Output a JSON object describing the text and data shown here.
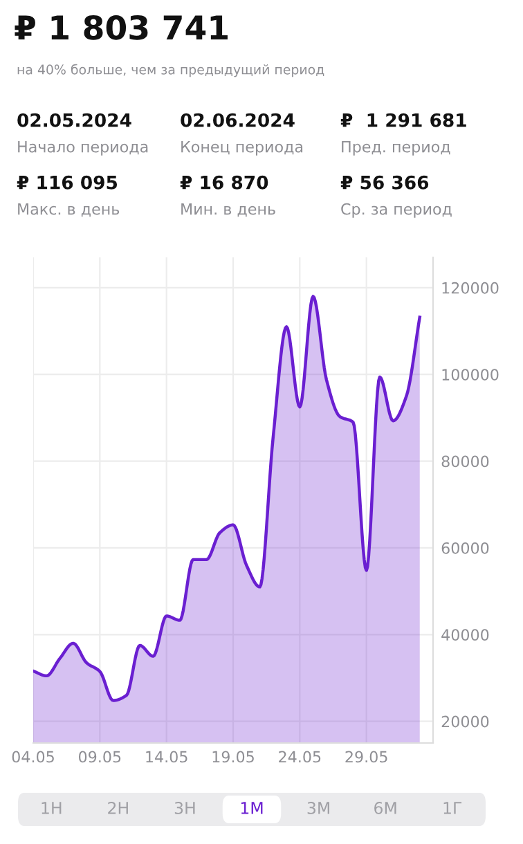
{
  "chart_data": {
    "type": "area",
    "title": "₽ 1 803 741",
    "subtitle": "на 40% больше, чем за предыдущий период",
    "annotations": [
      "02.05.2024",
      "Начало периода",
      "02.06.2024",
      "Конец периода",
      "₽  1 291 681",
      "Пред. период",
      "₽ 116 095",
      "Макс. в день",
      "₽ 16 870",
      "Мин. в день",
      "₽ 56 366",
      "Ср. за период",
      "1Н",
      "2Н",
      "3Н",
      "1М",
      "3М",
      "6М",
      "1Г"
    ],
    "x": [
      "2024-05-04",
      "2024-05-05",
      "2024-05-06",
      "2024-05-07",
      "2024-05-08",
      "2024-05-09",
      "2024-05-10",
      "2024-05-11",
      "2024-05-12",
      "2024-05-13",
      "2024-05-14",
      "2024-05-15",
      "2024-05-16",
      "2024-05-17",
      "2024-05-18",
      "2024-05-19",
      "2024-05-20",
      "2024-05-21",
      "2024-05-22",
      "2024-05-23",
      "2024-05-24",
      "2024-05-25",
      "2024-05-26",
      "2024-05-27",
      "2024-05-28",
      "2024-05-29",
      "2024-05-30",
      "2024-05-31",
      "2024-06-01",
      "2024-06-02"
    ],
    "series": [
      {
        "color": "#6a1fd1",
        "values": [
          31600,
          30500,
          34500,
          38000,
          33500,
          31500,
          24800,
          26000,
          37500,
          35000,
          44300,
          43300,
          57300,
          57300,
          63500,
          65300,
          56000,
          51000,
          85500,
          111000,
          92500,
          118000,
          98800,
          90300,
          89000,
          54800,
          99400,
          89300,
          95000,
          113200
        ]
      }
    ],
    "xlim": [
      "2024-05-04",
      "2024-06-03"
    ],
    "xticks": [
      {
        "value": "2024-05-04",
        "label": "04.05"
      },
      {
        "value": "2024-05-09",
        "label": "09.05"
      },
      {
        "value": "2024-05-14",
        "label": "14.05"
      },
      {
        "value": "2024-05-19",
        "label": "19.05"
      },
      {
        "value": "2024-05-24",
        "label": "24.05"
      },
      {
        "value": "2024-05-29",
        "label": "29.05"
      }
    ],
    "ylim": [
      15000,
      127000
    ],
    "yticks": [
      20000,
      40000,
      60000,
      80000,
      100000,
      120000
    ],
    "grid": true
  }
}
